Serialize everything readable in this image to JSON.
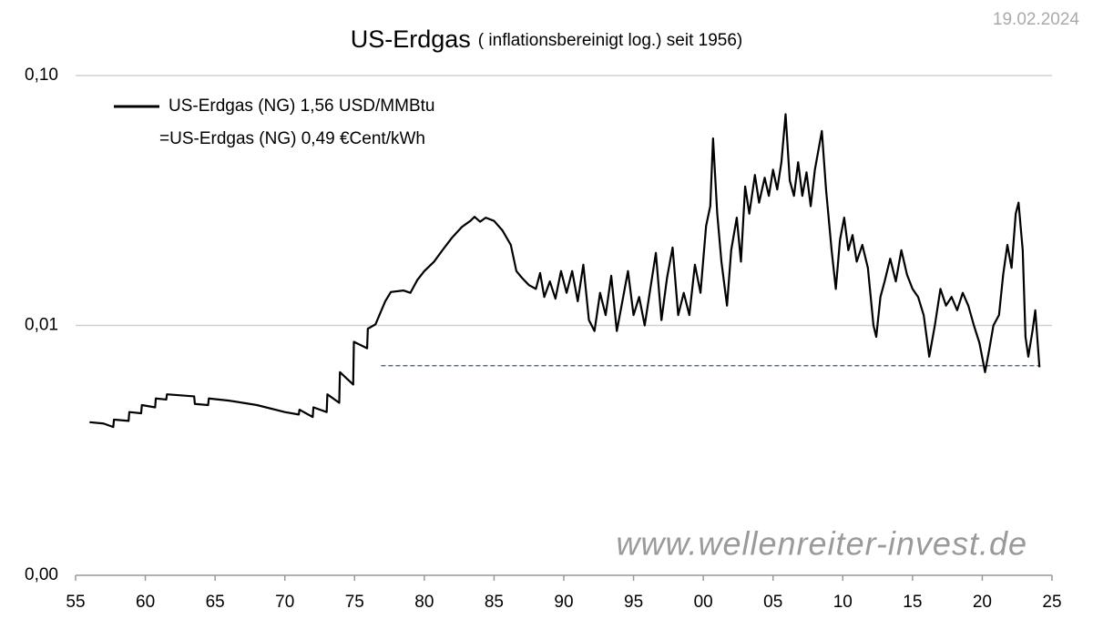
{
  "chart_data": {
    "type": "line",
    "title": "US-Erdgas",
    "subtitle": "( inflationsbereinigt log.) seit 1956)",
    "date": "19.02.2024",
    "watermark": "www.wellenreiter-invest.de",
    "legend_note": "=US-Erdgas (NG) 0,49 €Cent/kWh",
    "log_scale": true,
    "grid": true,
    "xlim": [
      1955,
      2025
    ],
    "xticks": [
      {
        "value": 1955,
        "label": "55"
      },
      {
        "value": 1960,
        "label": "60"
      },
      {
        "value": 1965,
        "label": "65"
      },
      {
        "value": 1970,
        "label": "70"
      },
      {
        "value": 1975,
        "label": "75"
      },
      {
        "value": 1980,
        "label": "80"
      },
      {
        "value": 1985,
        "label": "85"
      },
      {
        "value": 1990,
        "label": "90"
      },
      {
        "value": 1995,
        "label": "95"
      },
      {
        "value": 2000,
        "label": "00"
      },
      {
        "value": 2005,
        "label": "05"
      },
      {
        "value": 2010,
        "label": "10"
      },
      {
        "value": 2015,
        "label": "15"
      },
      {
        "value": 2020,
        "label": "20"
      },
      {
        "value": 2025,
        "label": "25"
      }
    ],
    "ylim": [
      0.001,
      0.1
    ],
    "yticks": [
      {
        "value": 0.001,
        "label": "0,00"
      },
      {
        "value": 0.01,
        "label": "0,01"
      },
      {
        "value": 0.1,
        "label": "0,10"
      }
    ],
    "reference_line": {
      "value": 0.0069,
      "x": [
        1976.9,
        2024.1
      ],
      "color": "#44546a"
    },
    "x": [
      1956.0,
      1957.0,
      1957.7,
      1957.75,
      1958.8,
      1958.85,
      1959.7,
      1959.75,
      1960.7,
      1960.75,
      1961.5,
      1961.55,
      1963.5,
      1963.55,
      1964.5,
      1964.55,
      1966,
      1968,
      1970,
      1971,
      1971.05,
      1972,
      1972.05,
      1973,
      1973.05,
      1973.9,
      1973.95,
      1974.9,
      1974.95,
      1975.9,
      1975.95,
      1976.5,
      1977.2,
      1977.6,
      1978.5,
      1979.0,
      1979.5,
      1980.0,
      1980.7,
      1981.3,
      1982.0,
      1982.7,
      1983.3,
      1983.6,
      1984.0,
      1984.4,
      1985.0,
      1985.6,
      1986.2,
      1986.6,
      1987.0,
      1987.5,
      1988.0,
      1988.3,
      1988.6,
      1989.0,
      1989.4,
      1989.8,
      1990.2,
      1990.6,
      1991.0,
      1991.4,
      1991.8,
      1992.2,
      1992.6,
      1993.0,
      1993.4,
      1993.8,
      1994.2,
      1994.6,
      1995.0,
      1995.4,
      1995.8,
      1996.2,
      1996.6,
      1997.0,
      1997.4,
      1997.8,
      1998.2,
      1998.6,
      1999.0,
      1999.4,
      1999.8,
      2000.2,
      2000.5,
      2000.7,
      2001.0,
      2001.3,
      2001.7,
      2002.0,
      2002.4,
      2002.7,
      2003.0,
      2003.3,
      2003.7,
      2004.0,
      2004.4,
      2004.7,
      2005.0,
      2005.3,
      2005.6,
      2005.9,
      2006.2,
      2006.5,
      2006.8,
      2007.1,
      2007.4,
      2007.7,
      2008.0,
      2008.5,
      2008.8,
      2009.2,
      2009.5,
      2009.8,
      2010.1,
      2010.4,
      2010.7,
      2011.0,
      2011.4,
      2011.8,
      2012.2,
      2012.4,
      2012.7,
      2013.0,
      2013.4,
      2013.8,
      2014.2,
      2014.6,
      2015.0,
      2015.4,
      2015.8,
      2016.2,
      2016.6,
      2017.0,
      2017.4,
      2017.8,
      2018.2,
      2018.6,
      2019.0,
      2019.4,
      2019.8,
      2020.2,
      2020.5,
      2020.8,
      2021.2,
      2021.5,
      2021.8,
      2022.1,
      2022.4,
      2022.6,
      2022.9,
      2023.1,
      2023.3,
      2023.6,
      2023.8,
      2024.1
    ],
    "series": [
      {
        "name": "US-Erdgas (NG) 1,56 USD/MMBtu",
        "color": "#000000",
        "values": [
          0.0041,
          0.00405,
          0.00392,
          0.0042,
          0.00415,
          0.0045,
          0.00445,
          0.0048,
          0.0047,
          0.0051,
          0.00505,
          0.0053,
          0.0052,
          0.00485,
          0.0048,
          0.0051,
          0.005,
          0.0048,
          0.0045,
          0.0044,
          0.0046,
          0.0043,
          0.0047,
          0.0045,
          0.0053,
          0.0049,
          0.0065,
          0.0058,
          0.0086,
          0.0081,
          0.0097,
          0.0101,
          0.0125,
          0.0136,
          0.0138,
          0.0135,
          0.0152,
          0.0165,
          0.018,
          0.02,
          0.0225,
          0.0248,
          0.0262,
          0.0272,
          0.026,
          0.027,
          0.0262,
          0.024,
          0.021,
          0.0165,
          0.0155,
          0.0145,
          0.014,
          0.0162,
          0.013,
          0.015,
          0.0128,
          0.0165,
          0.0135,
          0.0165,
          0.0125,
          0.0175,
          0.0105,
          0.0095,
          0.0135,
          0.011,
          0.0158,
          0.0095,
          0.0125,
          0.0165,
          0.011,
          0.013,
          0.01,
          0.014,
          0.0195,
          0.0105,
          0.0155,
          0.0205,
          0.011,
          0.0135,
          0.011,
          0.0175,
          0.0135,
          0.025,
          0.03,
          0.056,
          0.028,
          0.018,
          0.012,
          0.02,
          0.027,
          0.018,
          0.036,
          0.028,
          0.04,
          0.031,
          0.039,
          0.033,
          0.042,
          0.035,
          0.045,
          0.07,
          0.038,
          0.033,
          0.045,
          0.033,
          0.041,
          0.03,
          0.042,
          0.06,
          0.035,
          0.02,
          0.014,
          0.022,
          0.027,
          0.02,
          0.023,
          0.018,
          0.021,
          0.017,
          0.01,
          0.009,
          0.013,
          0.015,
          0.0185,
          0.015,
          0.02,
          0.016,
          0.014,
          0.013,
          0.011,
          0.0075,
          0.01,
          0.014,
          0.012,
          0.013,
          0.0115,
          0.0135,
          0.012,
          0.01,
          0.0085,
          0.0065,
          0.008,
          0.01,
          0.011,
          0.016,
          0.021,
          0.017,
          0.028,
          0.031,
          0.02,
          0.009,
          0.0075,
          0.0095,
          0.0115,
          0.0068
        ]
      }
    ]
  }
}
